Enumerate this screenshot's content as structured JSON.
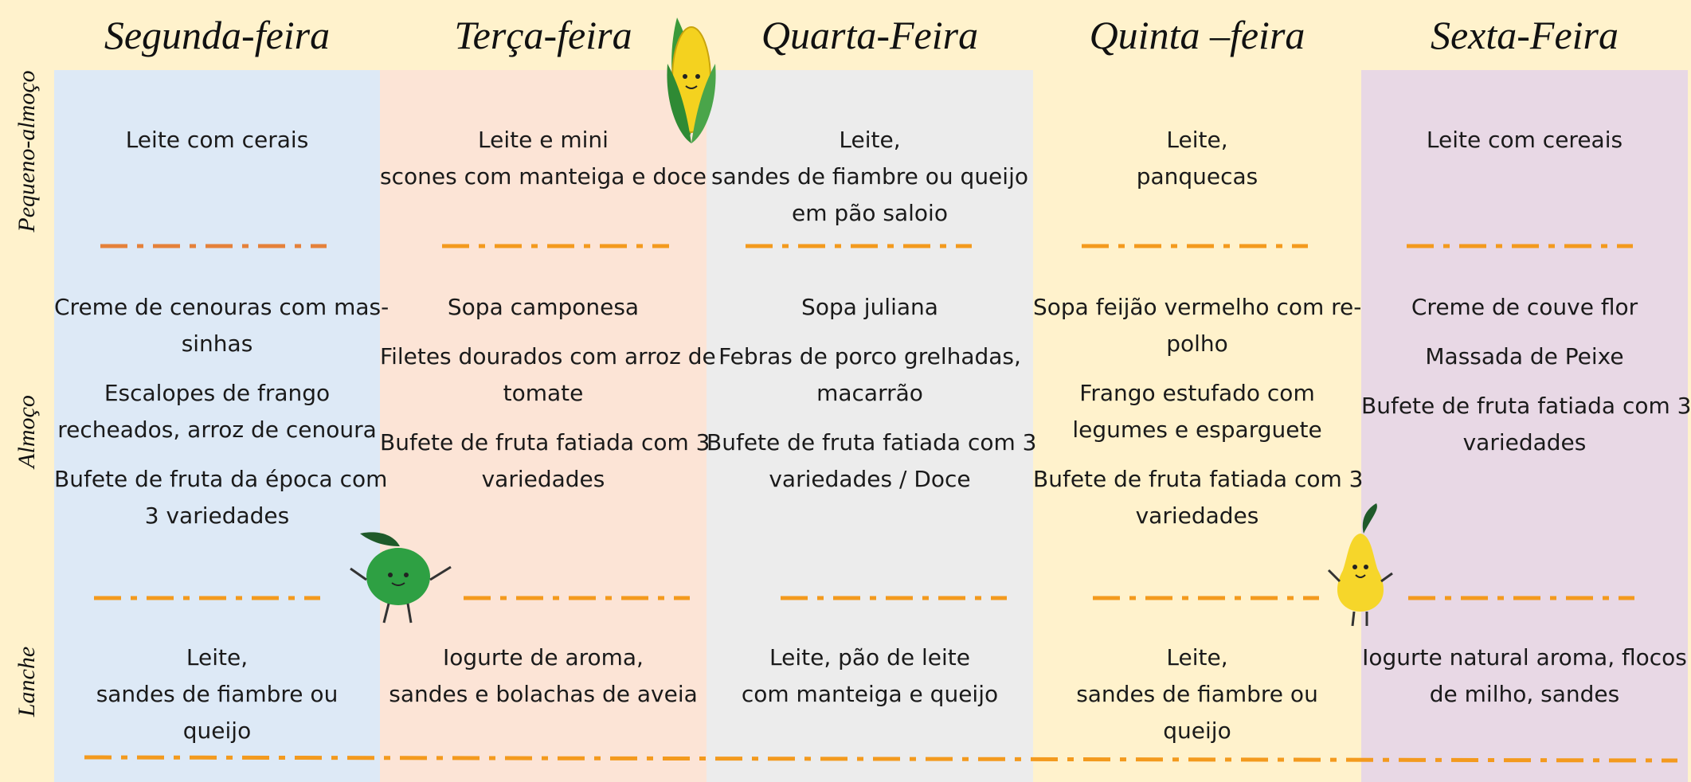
{
  "header": {
    "days": [
      "Segunda-feira",
      "Terça-feira",
      "Quarta-Feira",
      "Quinta –feira",
      "Sexta-Feira"
    ]
  },
  "meals": [
    "Pequeno-almoço",
    "Almoço",
    "Lanche"
  ],
  "columns": [
    {
      "breakfast": [
        [
          "Leite com cerais"
        ]
      ],
      "lunch": [
        [
          "Creme de cenouras com mas-",
          "sinhas"
        ],
        [
          "Escalopes de frango",
          "recheados, arroz de cenoura"
        ],
        [
          "Bufete de fruta da época com",
          "3 variedades"
        ]
      ],
      "snack": [
        [
          "Leite,",
          "sandes de fiambre ou",
          "queijo"
        ]
      ]
    },
    {
      "breakfast": [
        [
          "Leite e mini",
          "scones com manteiga e doce"
        ]
      ],
      "lunch": [
        [
          "Sopa camponesa"
        ],
        [
          "Filetes dourados com arroz de",
          "tomate"
        ],
        [
          "Bufete de fruta fatiada com 3",
          "variedades"
        ]
      ],
      "snack": [
        [
          "Iogurte de aroma,",
          "sandes e bolachas de aveia"
        ]
      ]
    },
    {
      "breakfast": [
        [
          "Leite,",
          "sandes de fiambre ou queijo",
          "em pão saloio"
        ]
      ],
      "lunch": [
        [
          "Sopa juliana"
        ],
        [
          "Febras de porco grelhadas,",
          "macarrão"
        ],
        [
          "Bufete de fruta fatiada com 3",
          "variedades / Doce"
        ]
      ],
      "snack": [
        [
          "Leite, pão de leite",
          "com manteiga e queijo"
        ]
      ]
    },
    {
      "breakfast": [
        [
          "Leite,",
          "panquecas"
        ]
      ],
      "lunch": [
        [
          "Sopa feijão vermelho com re-",
          "polho"
        ],
        [
          "Frango estufado com",
          "legumes e esparguete"
        ],
        [
          "Bufete de fruta fatiada com 3",
          "variedades"
        ]
      ],
      "snack": [
        [
          "Leite,",
          "sandes de fiambre ou",
          "queijo"
        ]
      ]
    },
    {
      "breakfast": [
        [
          "Leite com cereais"
        ]
      ],
      "lunch": [
        [
          "Creme de couve flor"
        ],
        [
          "Massada de Peixe"
        ],
        [
          "Bufete de fruta fatiada com 3",
          "variedades"
        ]
      ],
      "snack": [
        [
          "Iogurte natural aroma, flocos",
          "de milho, sandes"
        ]
      ]
    }
  ]
}
